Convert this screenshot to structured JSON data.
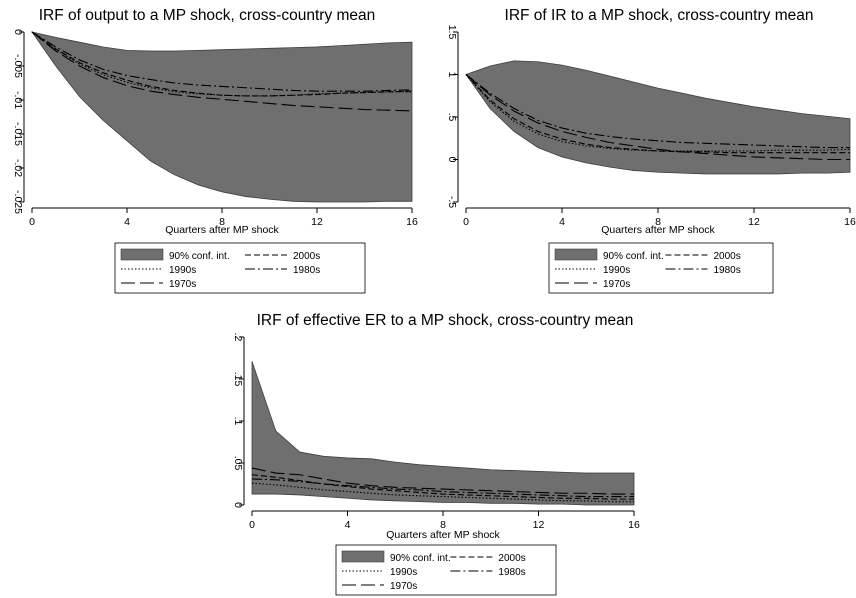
{
  "chart_data": [
    {
      "type": "area",
      "title": "IRF of output to a MP shock, cross-country mean",
      "xlabel": "Quarters after MP shock",
      "ylabel": "",
      "xlim": [
        0,
        16
      ],
      "ylim": [
        -0.025,
        0
      ],
      "xticks": [
        0,
        4,
        8,
        12,
        16
      ],
      "yticks": [
        0,
        -0.005,
        -0.01,
        -0.015,
        -0.02,
        -0.025
      ],
      "ytick_labels": [
        "0",
        "-.005",
        "-.01",
        "-.015",
        "-.02",
        "-.025"
      ],
      "x": [
        0,
        1,
        2,
        3,
        4,
        5,
        6,
        7,
        8,
        9,
        10,
        11,
        12,
        13,
        14,
        15,
        16
      ],
      "band": {
        "name": "90% conf. int.",
        "upper": [
          0,
          -0.0008,
          -0.0015,
          -0.0022,
          -0.0027,
          -0.0028,
          -0.0028,
          -0.0027,
          -0.0026,
          -0.0025,
          -0.0024,
          -0.0023,
          -0.0022,
          -0.002,
          -0.0018,
          -0.0016,
          -0.0015
        ],
        "lower": [
          0,
          -0.005,
          -0.0095,
          -0.013,
          -0.016,
          -0.019,
          -0.021,
          -0.0225,
          -0.0235,
          -0.0242,
          -0.0246,
          -0.0249,
          -0.025,
          -0.025,
          -0.025,
          -0.0249,
          -0.0249
        ]
      },
      "series": [
        {
          "name": "2000s",
          "values": [
            0,
            -0.0025,
            -0.0045,
            -0.006,
            -0.0071,
            -0.008,
            -0.0086,
            -0.009,
            -0.0093,
            -0.0094,
            -0.0094,
            -0.0093,
            -0.0092,
            -0.009,
            -0.0089,
            -0.0088,
            -0.0087
          ]
        },
        {
          "name": "1990s",
          "values": [
            0,
            -0.0026,
            -0.0047,
            -0.0063,
            -0.0074,
            -0.0082,
            -0.0088,
            -0.0091,
            -0.0093,
            -0.0094,
            -0.0094,
            -0.0093,
            -0.0091,
            -0.009,
            -0.0089,
            -0.0088,
            -0.0088
          ]
        },
        {
          "name": "1980s",
          "values": [
            0,
            -0.0022,
            -0.0041,
            -0.0055,
            -0.0064,
            -0.007,
            -0.0075,
            -0.0078,
            -0.008,
            -0.0082,
            -0.0084,
            -0.0086,
            -0.0087,
            -0.0087,
            -0.0087,
            -0.0086,
            -0.0085
          ]
        },
        {
          "name": "1970s",
          "values": [
            0,
            -0.0028,
            -0.005,
            -0.0067,
            -0.0079,
            -0.0087,
            -0.0092,
            -0.0096,
            -0.0099,
            -0.0102,
            -0.0105,
            -0.0108,
            -0.011,
            -0.0112,
            -0.0114,
            -0.0115,
            -0.0116
          ]
        }
      ]
    },
    {
      "type": "area",
      "title": "IRF of IR to a MP shock, cross-country mean",
      "xlabel": "Quarters after MP shock",
      "ylabel": "",
      "xlim": [
        0,
        16
      ],
      "ylim": [
        -0.5,
        1.5
      ],
      "xticks": [
        0,
        4,
        8,
        12,
        16
      ],
      "yticks": [
        1.5,
        1,
        0.5,
        0,
        -0.5
      ],
      "ytick_labels": [
        "1.5",
        "1",
        ".5",
        "0",
        "-.5"
      ],
      "x": [
        0,
        1,
        2,
        3,
        4,
        5,
        6,
        7,
        8,
        9,
        10,
        11,
        12,
        13,
        14,
        15,
        16
      ],
      "band": {
        "name": "90% conf. int.",
        "upper": [
          1,
          1.1,
          1.16,
          1.15,
          1.11,
          1.05,
          0.98,
          0.91,
          0.84,
          0.78,
          0.72,
          0.67,
          0.62,
          0.58,
          0.54,
          0.51,
          0.48
        ],
        "lower": [
          1,
          0.6,
          0.33,
          0.14,
          0.03,
          -0.04,
          -0.09,
          -0.13,
          -0.15,
          -0.16,
          -0.17,
          -0.17,
          -0.17,
          -0.17,
          -0.16,
          -0.16,
          -0.15
        ]
      },
      "series": [
        {
          "name": "2000s",
          "values": [
            1,
            0.7,
            0.48,
            0.33,
            0.24,
            0.18,
            0.14,
            0.12,
            0.1,
            0.09,
            0.09,
            0.08,
            0.08,
            0.08,
            0.08,
            0.08,
            0.08
          ]
        },
        {
          "name": "1990s",
          "values": [
            1,
            0.68,
            0.45,
            0.3,
            0.21,
            0.16,
            0.13,
            0.11,
            0.1,
            0.1,
            0.1,
            0.1,
            0.1,
            0.11,
            0.11,
            0.11,
            0.12
          ]
        },
        {
          "name": "1980s",
          "values": [
            1,
            0.78,
            0.6,
            0.46,
            0.37,
            0.31,
            0.27,
            0.24,
            0.22,
            0.2,
            0.19,
            0.18,
            0.17,
            0.16,
            0.15,
            0.14,
            0.14
          ]
        },
        {
          "name": "1970s",
          "values": [
            1,
            0.76,
            0.57,
            0.43,
            0.33,
            0.26,
            0.2,
            0.16,
            0.12,
            0.09,
            0.07,
            0.05,
            0.03,
            0.02,
            0.01,
            0.0,
            0.0
          ]
        }
      ]
    },
    {
      "type": "area",
      "title": "IRF of effective ER to a MP shock, cross-country mean",
      "xlabel": "Quarters after MP shock",
      "ylabel": "",
      "xlim": [
        0,
        16
      ],
      "ylim": [
        0,
        0.2
      ],
      "xticks": [
        0,
        4,
        8,
        12,
        16
      ],
      "yticks": [
        0.2,
        0.15,
        0.1,
        0.05,
        0
      ],
      "ytick_labels": [
        ".2",
        ".15",
        ".1",
        ".05",
        "0"
      ],
      "x": [
        0,
        1,
        2,
        3,
        4,
        5,
        6,
        7,
        8,
        9,
        10,
        11,
        12,
        13,
        14,
        15,
        16
      ],
      "band": {
        "name": "90% conf. int.",
        "upper": [
          0.171,
          0.088,
          0.063,
          0.058,
          0.056,
          0.055,
          0.051,
          0.048,
          0.046,
          0.044,
          0.042,
          0.041,
          0.04,
          0.039,
          0.038,
          0.038,
          0.038
        ],
        "lower": [
          0.013,
          0.013,
          0.012,
          0.01,
          0.008,
          0.006,
          0.005,
          0.004,
          0.003,
          0.003,
          0.002,
          0.002,
          0.001,
          0.001,
          0.0,
          0.0,
          0.0
        ]
      },
      "series": [
        {
          "name": "2000s",
          "values": [
            0.036,
            0.033,
            0.029,
            0.025,
            0.022,
            0.019,
            0.017,
            0.015,
            0.013,
            0.012,
            0.011,
            0.01,
            0.009,
            0.008,
            0.008,
            0.007,
            0.007
          ]
        },
        {
          "name": "1990s",
          "values": [
            0.026,
            0.024,
            0.021,
            0.018,
            0.016,
            0.014,
            0.012,
            0.011,
            0.01,
            0.009,
            0.008,
            0.007,
            0.006,
            0.005,
            0.005,
            0.004,
            0.004
          ]
        },
        {
          "name": "1980s",
          "values": [
            0.031,
            0.03,
            0.028,
            0.025,
            0.023,
            0.021,
            0.019,
            0.018,
            0.016,
            0.015,
            0.014,
            0.013,
            0.012,
            0.011,
            0.01,
            0.01,
            0.01
          ]
        },
        {
          "name": "1970s",
          "values": [
            0.044,
            0.038,
            0.036,
            0.031,
            0.026,
            0.023,
            0.021,
            0.02,
            0.019,
            0.018,
            0.017,
            0.016,
            0.015,
            0.014,
            0.014,
            0.013,
            0.013
          ]
        }
      ]
    }
  ],
  "legend": {
    "entries": [
      "90% conf. int.",
      "2000s",
      "1990s",
      "1980s",
      "1970s"
    ]
  },
  "colors": {
    "band": "#6f6f6f",
    "band_edge": "#3f3f3f",
    "line": "#000000",
    "axis": "#000000"
  }
}
